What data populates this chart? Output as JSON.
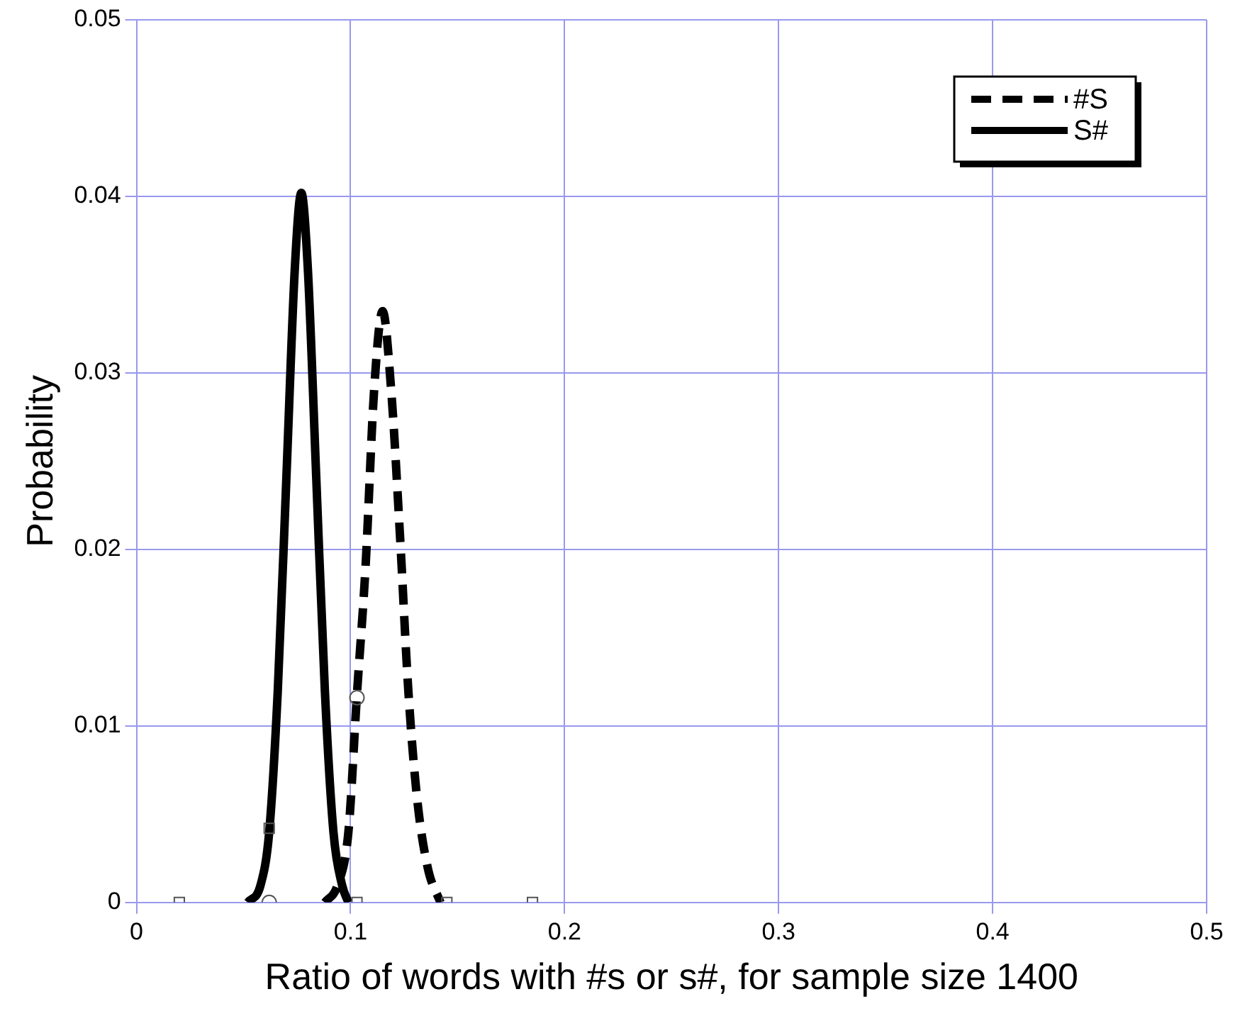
{
  "chart_data": {
    "type": "line",
    "xlabel": "Ratio of words with #s or s#, for sample size 1400",
    "ylabel": "Probability",
    "xlim": [
      0,
      0.5
    ],
    "xticks": [
      0,
      0.1,
      0.2,
      0.3,
      0.4,
      0.5
    ],
    "ylim": [
      0,
      0.05
    ],
    "yticks": [
      0,
      0.01,
      0.02,
      0.03,
      0.04,
      0.05
    ],
    "grid": true,
    "legend": "top right",
    "series": [
      {
        "name": "#S",
        "color": "#000000",
        "line_style": "dashed",
        "x": [
          0.088,
          0.094,
          0.099,
          0.103,
          0.107,
          0.111,
          0.115,
          0.119,
          0.123,
          0.127,
          0.131,
          0.136,
          0.142
        ],
        "values": [
          0,
          0.001,
          0.004,
          0.0118,
          0.019,
          0.029,
          0.0335,
          0.029,
          0.021,
          0.012,
          0.006,
          0.002,
          0
        ]
      },
      {
        "name": "S#",
        "color": "#000000",
        "line_style": "solid",
        "x": [
          0.052,
          0.058,
          0.062,
          0.066,
          0.07,
          0.074,
          0.077,
          0.08,
          0.084,
          0.088,
          0.092,
          0.096,
          0.099
        ],
        "values": [
          0,
          0.001,
          0.004,
          0.012,
          0.024,
          0.036,
          0.0402,
          0.036,
          0.024,
          0.012,
          0.004,
          0.001,
          0
        ]
      },
      {
        "type": "scatter",
        "color": "#555555",
        "marker": "circle",
        "x": [
          0.062,
          0.103
        ],
        "values": [
          0,
          0.0116
        ]
      },
      {
        "type": "scatter",
        "color": "#555555",
        "marker": "square",
        "x": [
          0.02,
          0.062,
          0.103,
          0.145,
          0.185
        ],
        "values": [
          0,
          0.0042,
          0,
          0,
          0
        ]
      }
    ]
  }
}
